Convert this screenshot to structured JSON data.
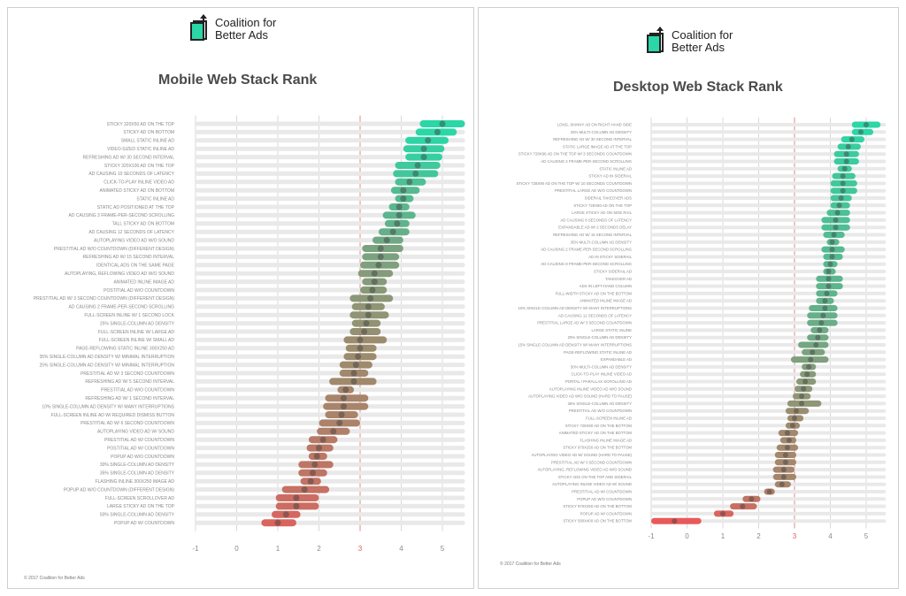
{
  "logo": {
    "line1": "Coalition for",
    "line2": "Better Ads"
  },
  "footer": "© 2017 Coalition for Better Ads",
  "chart_data": [
    {
      "type": "dot-range",
      "title": "Mobile Web Stack Rank",
      "xlim": [
        -1,
        5
      ],
      "ticks": [
        "-1",
        "0",
        "1",
        "2",
        "3",
        "4",
        "5"
      ],
      "reference_line": 3,
      "grid": true,
      "rows": [
        {
          "label": "STICKY 320X50 AD ON THE TOP",
          "mean": 5.0,
          "low": 4.45,
          "high": 5.55
        },
        {
          "label": "STICKY AD ON BOTTOM",
          "mean": 4.88,
          "low": 4.35,
          "high": 5.35
        },
        {
          "label": "SMALL STATIC INLINE AD",
          "mean": 4.65,
          "low": 4.1,
          "high": 5.15
        },
        {
          "label": "VIDEO-SIZED STATIC INLINE AD",
          "mean": 4.55,
          "low": 4.05,
          "high": 5.05
        },
        {
          "label": "REFRESHING AD W/ 30 SECOND INTERVAL",
          "mean": 4.55,
          "low": 4.1,
          "high": 5.0
        },
        {
          "label": "STICKY 320X100 AD ON THE TOP",
          "mean": 4.4,
          "low": 3.85,
          "high": 4.95
        },
        {
          "label": "AD CAUSING 10 SECONDS OF LATENCY",
          "mean": 4.35,
          "low": 3.8,
          "high": 4.9
        },
        {
          "label": "CLICK-TO-PLAY INLINE VIDEO AD",
          "mean": 4.2,
          "low": 3.85,
          "high": 4.6
        },
        {
          "label": "ANIMATED STICKY AD ON BOTTOM",
          "mean": 4.05,
          "low": 3.75,
          "high": 4.45
        },
        {
          "label": "STATIC INLINE AD",
          "mean": 4.05,
          "low": 3.85,
          "high": 4.3
        },
        {
          "label": "STATIC AD POSITIONED AT THE TOP",
          "mean": 3.95,
          "low": 3.7,
          "high": 4.2
        },
        {
          "label": "AD CAUSING 3 FRAME-PER-SECOND SCROLLING",
          "mean": 3.95,
          "low": 3.55,
          "high": 4.35
        },
        {
          "label": "TALL STICKY AD ON BOTTOM",
          "mean": 3.9,
          "low": 3.6,
          "high": 4.2
        },
        {
          "label": "AD CAUSING 12 SECONDS OF LATENCY",
          "mean": 3.8,
          "low": 3.45,
          "high": 4.2
        },
        {
          "label": "AUTOPLAYING VIDEO AD W/O SOUND",
          "mean": 3.65,
          "low": 3.3,
          "high": 4.05
        },
        {
          "label": "PRESTITIAL AD W/O COUNTDOWN (DIFFERENT DESIGN)",
          "mean": 3.5,
          "low": 3.05,
          "high": 4.05
        },
        {
          "label": "REFRESHING AD W/ 15 SECOND INTERVAL",
          "mean": 3.5,
          "low": 3.05,
          "high": 3.95
        },
        {
          "label": "IDENTICAL ADS ON THE SAME PAGE",
          "mean": 3.45,
          "low": 3.0,
          "high": 3.95
        },
        {
          "label": "AUTOPLAYING, REFLOWING VIDEO AD W/O SOUND",
          "mean": 3.35,
          "low": 2.95,
          "high": 3.8
        },
        {
          "label": "ANIMATED INLINE IMAGE AD",
          "mean": 3.35,
          "low": 3.05,
          "high": 3.65
        },
        {
          "label": "POSTITIAL AD W/O COUNTDOWN",
          "mean": 3.3,
          "low": 3.0,
          "high": 3.65
        },
        {
          "label": "PRESTITIAL AD W/ 3 SECOND COUNTDOWN (DIFFERENT DESIGN)",
          "mean": 3.25,
          "low": 2.75,
          "high": 3.8
        },
        {
          "label": "AD CAUSING 2 FRAME-PER-SECOND SCROLLING",
          "mean": 3.2,
          "low": 2.8,
          "high": 3.6
        },
        {
          "label": "FULL-SCREEN INLINE W/ 1 SECOND LOCK",
          "mean": 3.2,
          "low": 2.75,
          "high": 3.7
        },
        {
          "label": "25% SINGLE-COLUMN AD DENSITY",
          "mean": 3.15,
          "low": 2.8,
          "high": 3.5
        },
        {
          "label": "FULL-SCREEN INLINE W/ LARGE AD",
          "mean": 3.1,
          "low": 2.75,
          "high": 3.5
        },
        {
          "label": "FULL-SCREEN INLINE W/ SMALL AD",
          "mean": 3.0,
          "low": 2.6,
          "high": 3.65
        },
        {
          "label": "PAGE-REFLOWING STATIC INLINE 300X250 AD",
          "mean": 3.0,
          "low": 2.65,
          "high": 3.4
        },
        {
          "label": "35% SINGLE-COLUMN AD DENSITY W/ MINIMAL INTERRUPTION",
          "mean": 2.95,
          "low": 2.6,
          "high": 3.4
        },
        {
          "label": "25% SINGLE-COLUMN AD DENSITY W/ MINIMAL INTERRUPTION",
          "mean": 2.9,
          "low": 2.5,
          "high": 3.3
        },
        {
          "label": "PRESTITIAL AD W/ 3 SECOND COUNTDOWN",
          "mean": 2.85,
          "low": 2.5,
          "high": 3.2
        },
        {
          "label": "REFRESHING AD W/ 5 SECOND INTERVAL",
          "mean": 2.85,
          "low": 2.25,
          "high": 3.4
        },
        {
          "label": "PRESTITIAL AD W/O COUNTDOWN",
          "mean": 2.65,
          "low": 2.45,
          "high": 2.85
        },
        {
          "label": "REFRESHING AD W/ 1 SECOND INTERVAL",
          "mean": 2.6,
          "low": 2.15,
          "high": 3.2
        },
        {
          "label": "10% SINGLE-COLUMN AD DENSITY W/ MANY INTERRUPTIONS",
          "mean": 2.6,
          "low": 2.1,
          "high": 3.2
        },
        {
          "label": "FULL-SCREEN INLINE AD W/ REQUIRED DISMISS BUTTON",
          "mean": 2.55,
          "low": 2.15,
          "high": 2.95
        },
        {
          "label": "PRESTITIAL AD W/ 6 SECOND COUNTDOWN",
          "mean": 2.5,
          "low": 2.0,
          "high": 3.0
        },
        {
          "label": "AUTOPLAYING VIDEO AD W/ SOUND",
          "mean": 2.35,
          "low": 1.95,
          "high": 2.75
        },
        {
          "label": "PRESTITIAL AD W/ COUNTDOWN",
          "mean": 2.1,
          "low": 1.75,
          "high": 2.45
        },
        {
          "label": "POSTITIAL AD W/ COUNTDOWN",
          "mean": 2.0,
          "low": 1.7,
          "high": 2.35
        },
        {
          "label": "POPUP AD W/O COUNTDOWN",
          "mean": 1.95,
          "low": 1.75,
          "high": 2.2
        },
        {
          "label": "30% SINGLE-COLUMN AD DENSITY",
          "mean": 1.9,
          "low": 1.5,
          "high": 2.35
        },
        {
          "label": "35% SINGLE-COLUMN AD DENSITY",
          "mean": 1.85,
          "low": 1.5,
          "high": 2.2
        },
        {
          "label": "FLASHING INLINE 300X250 IMAGE AD",
          "mean": 1.8,
          "low": 1.55,
          "high": 2.05
        },
        {
          "label": "POPUP AD W/O COUNTDOWN (DIFFERENT DESIGN)",
          "mean": 1.65,
          "low": 1.1,
          "high": 2.25
        },
        {
          "label": "FULL-SCREEN SCROLLOVER AD",
          "mean": 1.45,
          "low": 0.95,
          "high": 2.0
        },
        {
          "label": "LARGE STICKY AD ON THE TOP",
          "mean": 1.45,
          "low": 0.95,
          "high": 2.0
        },
        {
          "label": "50% SINGLE-COLUMN AD DENSITY",
          "mean": 1.2,
          "low": 0.85,
          "high": 1.55
        },
        {
          "label": "POPUP AD W/ COUNTDOWN",
          "mean": 1.0,
          "low": 0.6,
          "high": 1.45
        }
      ]
    },
    {
      "type": "dot-range",
      "title": "Desktop Web Stack Rank",
      "xlim": [
        -1,
        5
      ],
      "ticks": [
        "-1",
        "0",
        "1",
        "2",
        "3",
        "4",
        "5"
      ],
      "reference_line": 3,
      "grid": true,
      "rows": [
        {
          "label": "LONG, SKINNY AD ON RIGHT-HAND SIDE",
          "mean": 5.0,
          "low": 4.6,
          "high": 5.4
        },
        {
          "label": "25% MULTI-COLUMN AD DENSITY",
          "mean": 4.85,
          "low": 4.6,
          "high": 5.2
        },
        {
          "label": "REFRESHING AD W/ 30 SECOND INTERVAL",
          "mean": 4.6,
          "low": 4.3,
          "high": 4.95
        },
        {
          "label": "STATIC LARGE IMAGE AD AT THE TOP",
          "mean": 4.5,
          "low": 4.2,
          "high": 4.85
        },
        {
          "label": "STICKY 728X90 AD ON THE TOP W/ 3 SECONDS COUNTDOWN",
          "mean": 4.45,
          "low": 4.1,
          "high": 4.8
        },
        {
          "label": "AD CAUSING 4 FRAME-PER-SECOND SCROLLING",
          "mean": 4.45,
          "low": 4.1,
          "high": 4.8
        },
        {
          "label": "STATIC INLINE AD",
          "mean": 4.4,
          "low": 4.2,
          "high": 4.6
        },
        {
          "label": "STICKY AD IN SIDERAIL",
          "mean": 4.35,
          "low": 4.05,
          "high": 4.7
        },
        {
          "label": "STICKY 728X90 AD ON THE TOP W/ 10 SECONDS COUNTDOWN",
          "mean": 4.35,
          "low": 4.0,
          "high": 4.75
        },
        {
          "label": "PRESTITIAL LARGE AD W/O COUNTDOWN",
          "mean": 4.35,
          "low": 4.0,
          "high": 4.75
        },
        {
          "label": "SIDERAIL TAKEOVER ADS",
          "mean": 4.3,
          "low": 4.0,
          "high": 4.6
        },
        {
          "label": "STICKY 728X90 AD ON THE TOP",
          "mean": 4.25,
          "low": 4.0,
          "high": 4.55
        },
        {
          "label": "LARGE STICKY AD ON SIDE RAIL",
          "mean": 4.2,
          "low": 3.9,
          "high": 4.55
        },
        {
          "label": "AD CAUSING 8 SECONDS OF LATENCY",
          "mean": 4.15,
          "low": 3.75,
          "high": 4.55
        },
        {
          "label": "EXPANDABLE AD W/ 2 SECONDS DELAY",
          "mean": 4.15,
          "low": 3.75,
          "high": 4.55
        },
        {
          "label": "REFRESHING AD W/ 15 SECOND INTERVAL",
          "mean": 4.1,
          "low": 3.8,
          "high": 4.4
        },
        {
          "label": "35% MULTI-COLUMN AD DENSITY",
          "mean": 4.05,
          "low": 3.9,
          "high": 4.25
        },
        {
          "label": "AD CAUSING 2 FRAME-PER-SECOND SCROLLING",
          "mean": 4.05,
          "low": 3.75,
          "high": 4.4
        },
        {
          "label": "AD IN STICKY SIDERAIL",
          "mean": 4.05,
          "low": 3.8,
          "high": 4.35
        },
        {
          "label": "AD CAUSING 8 FRAME-PER-SECOND SCROLLING",
          "mean": 4.0,
          "low": 3.8,
          "high": 4.2
        },
        {
          "label": "STICKY SIDERAIL AD",
          "mean": 3.95,
          "low": 3.8,
          "high": 4.15
        },
        {
          "label": "TAKEOVER AD",
          "mean": 3.95,
          "low": 3.6,
          "high": 4.35
        },
        {
          "label": "ADS IN LEFT-HAND COLUMN",
          "mean": 3.95,
          "low": 3.6,
          "high": 4.35
        },
        {
          "label": "FULL-WIDTH STICKY AD ON THE BOTTOM",
          "mean": 3.9,
          "low": 3.6,
          "high": 4.2
        },
        {
          "label": "ANIMATED INLINE IMAGE AD",
          "mean": 3.85,
          "low": 3.6,
          "high": 4.1
        },
        {
          "label": "10% SINGLE-COLUMN AD DENSITY W/ MANY INTERRUPTIONS",
          "mean": 3.85,
          "low": 3.4,
          "high": 4.2
        },
        {
          "label": "AD CAUSING 12 SECONDS OF LATENCY",
          "mean": 3.8,
          "low": 3.35,
          "high": 4.2
        },
        {
          "label": "PRESTITIAL LARGE AD W/ 3 SECOND COUNTDOWN",
          "mean": 3.75,
          "low": 3.35,
          "high": 4.2
        },
        {
          "label": "LARGE STATIC INLINE",
          "mean": 3.7,
          "low": 3.45,
          "high": 3.95
        },
        {
          "label": "25% SINGLE-COLUMN AD DENSITY",
          "mean": 3.65,
          "low": 3.35,
          "high": 3.95
        },
        {
          "label": "15% SINGLE-COLUMN AD DENSITY W/ MANY INTERRUPTIONS",
          "mean": 3.6,
          "low": 3.1,
          "high": 3.95
        },
        {
          "label": "PAGE-REFLOWING STATIC INLINE AD",
          "mean": 3.5,
          "low": 3.2,
          "high": 3.85
        },
        {
          "label": "EXPANDABLE AD",
          "mean": 3.45,
          "low": 2.9,
          "high": 3.95
        },
        {
          "label": "50% MULTI-COLUMN AD DENSITY",
          "mean": 3.4,
          "low": 3.2,
          "high": 3.6
        },
        {
          "label": "CLICK-TO-PLAY INLINE VIDEO AD",
          "mean": 3.35,
          "low": 3.15,
          "high": 3.6
        },
        {
          "label": "PORTAL / PARALLAX SCROLLING AD",
          "mean": 3.3,
          "low": 3.05,
          "high": 3.6
        },
        {
          "label": "AUTOPLAYING INLINE VIDEO AD W/O SOUND",
          "mean": 3.25,
          "low": 3.0,
          "high": 3.5
        },
        {
          "label": "AUTOPLAYING VIDEO AD W/O SOUND (HARD TO PAUSE)",
          "mean": 3.2,
          "low": 2.95,
          "high": 3.45
        },
        {
          "label": "35% SINGLE-COLUMN AD DENSITY",
          "mean": 3.2,
          "low": 2.8,
          "high": 3.75
        },
        {
          "label": "PRESTITIAL AD W/O COUNTDOWN",
          "mean": 3.05,
          "low": 2.75,
          "high": 3.4
        },
        {
          "label": "FULL-SCREEN INLINE AD",
          "mean": 3.0,
          "low": 2.8,
          "high": 3.25
        },
        {
          "label": "STICKY 728X90 AD ON THE BOTTOM",
          "mean": 2.95,
          "low": 2.75,
          "high": 3.15
        },
        {
          "label": "ANIMATED STICKY AD ON THE BOTTOM",
          "mean": 2.8,
          "low": 2.55,
          "high": 3.1
        },
        {
          "label": "FLASHING INLINE IMAGE AD",
          "mean": 2.85,
          "low": 2.6,
          "high": 3.05
        },
        {
          "label": "STICKY 970X250 AD ON THE BOTTOM",
          "mean": 2.8,
          "low": 2.5,
          "high": 3.1
        },
        {
          "label": "AUTOPLAYING VIDEO AD W/ SOUND (HARD TO PAUSE)",
          "mean": 2.75,
          "low": 2.45,
          "high": 3.05
        },
        {
          "label": "PRESTITIAL AD W/ 3 SECOND COUNTDOWN",
          "mean": 2.75,
          "low": 2.45,
          "high": 3.05
        },
        {
          "label": "AUTOPLAYING, REFLOWING VIDEO AD W/O SOUND",
          "mean": 2.7,
          "low": 2.4,
          "high": 3.0
        },
        {
          "label": "STICKY ADS ON THE TOP AND SIDERAIL",
          "mean": 2.7,
          "low": 2.4,
          "high": 3.05
        },
        {
          "label": "AUTOPLAYING INLINE VIDEO AD W/ SOUND",
          "mean": 2.65,
          "low": 2.45,
          "high": 2.9
        },
        {
          "label": "PRESTITIAL AD W/ COUNTDOWN",
          "mean": 2.3,
          "low": 2.15,
          "high": 2.45
        },
        {
          "label": "POPUP AD W/O COUNTDOWN",
          "mean": 1.8,
          "low": 1.55,
          "high": 2.05
        },
        {
          "label": "STICKY 970X250 AD ON THE BOTTOM",
          "mean": 1.55,
          "low": 1.2,
          "high": 1.95
        },
        {
          "label": "POPUP AD W/ COUNTDOWN",
          "mean": 1.0,
          "low": 0.75,
          "high": 1.3
        },
        {
          "label": "STICKY 580X400 AD ON THE BOTTOM",
          "mean": -0.35,
          "low": -1.0,
          "high": 0.4
        }
      ]
    }
  ]
}
